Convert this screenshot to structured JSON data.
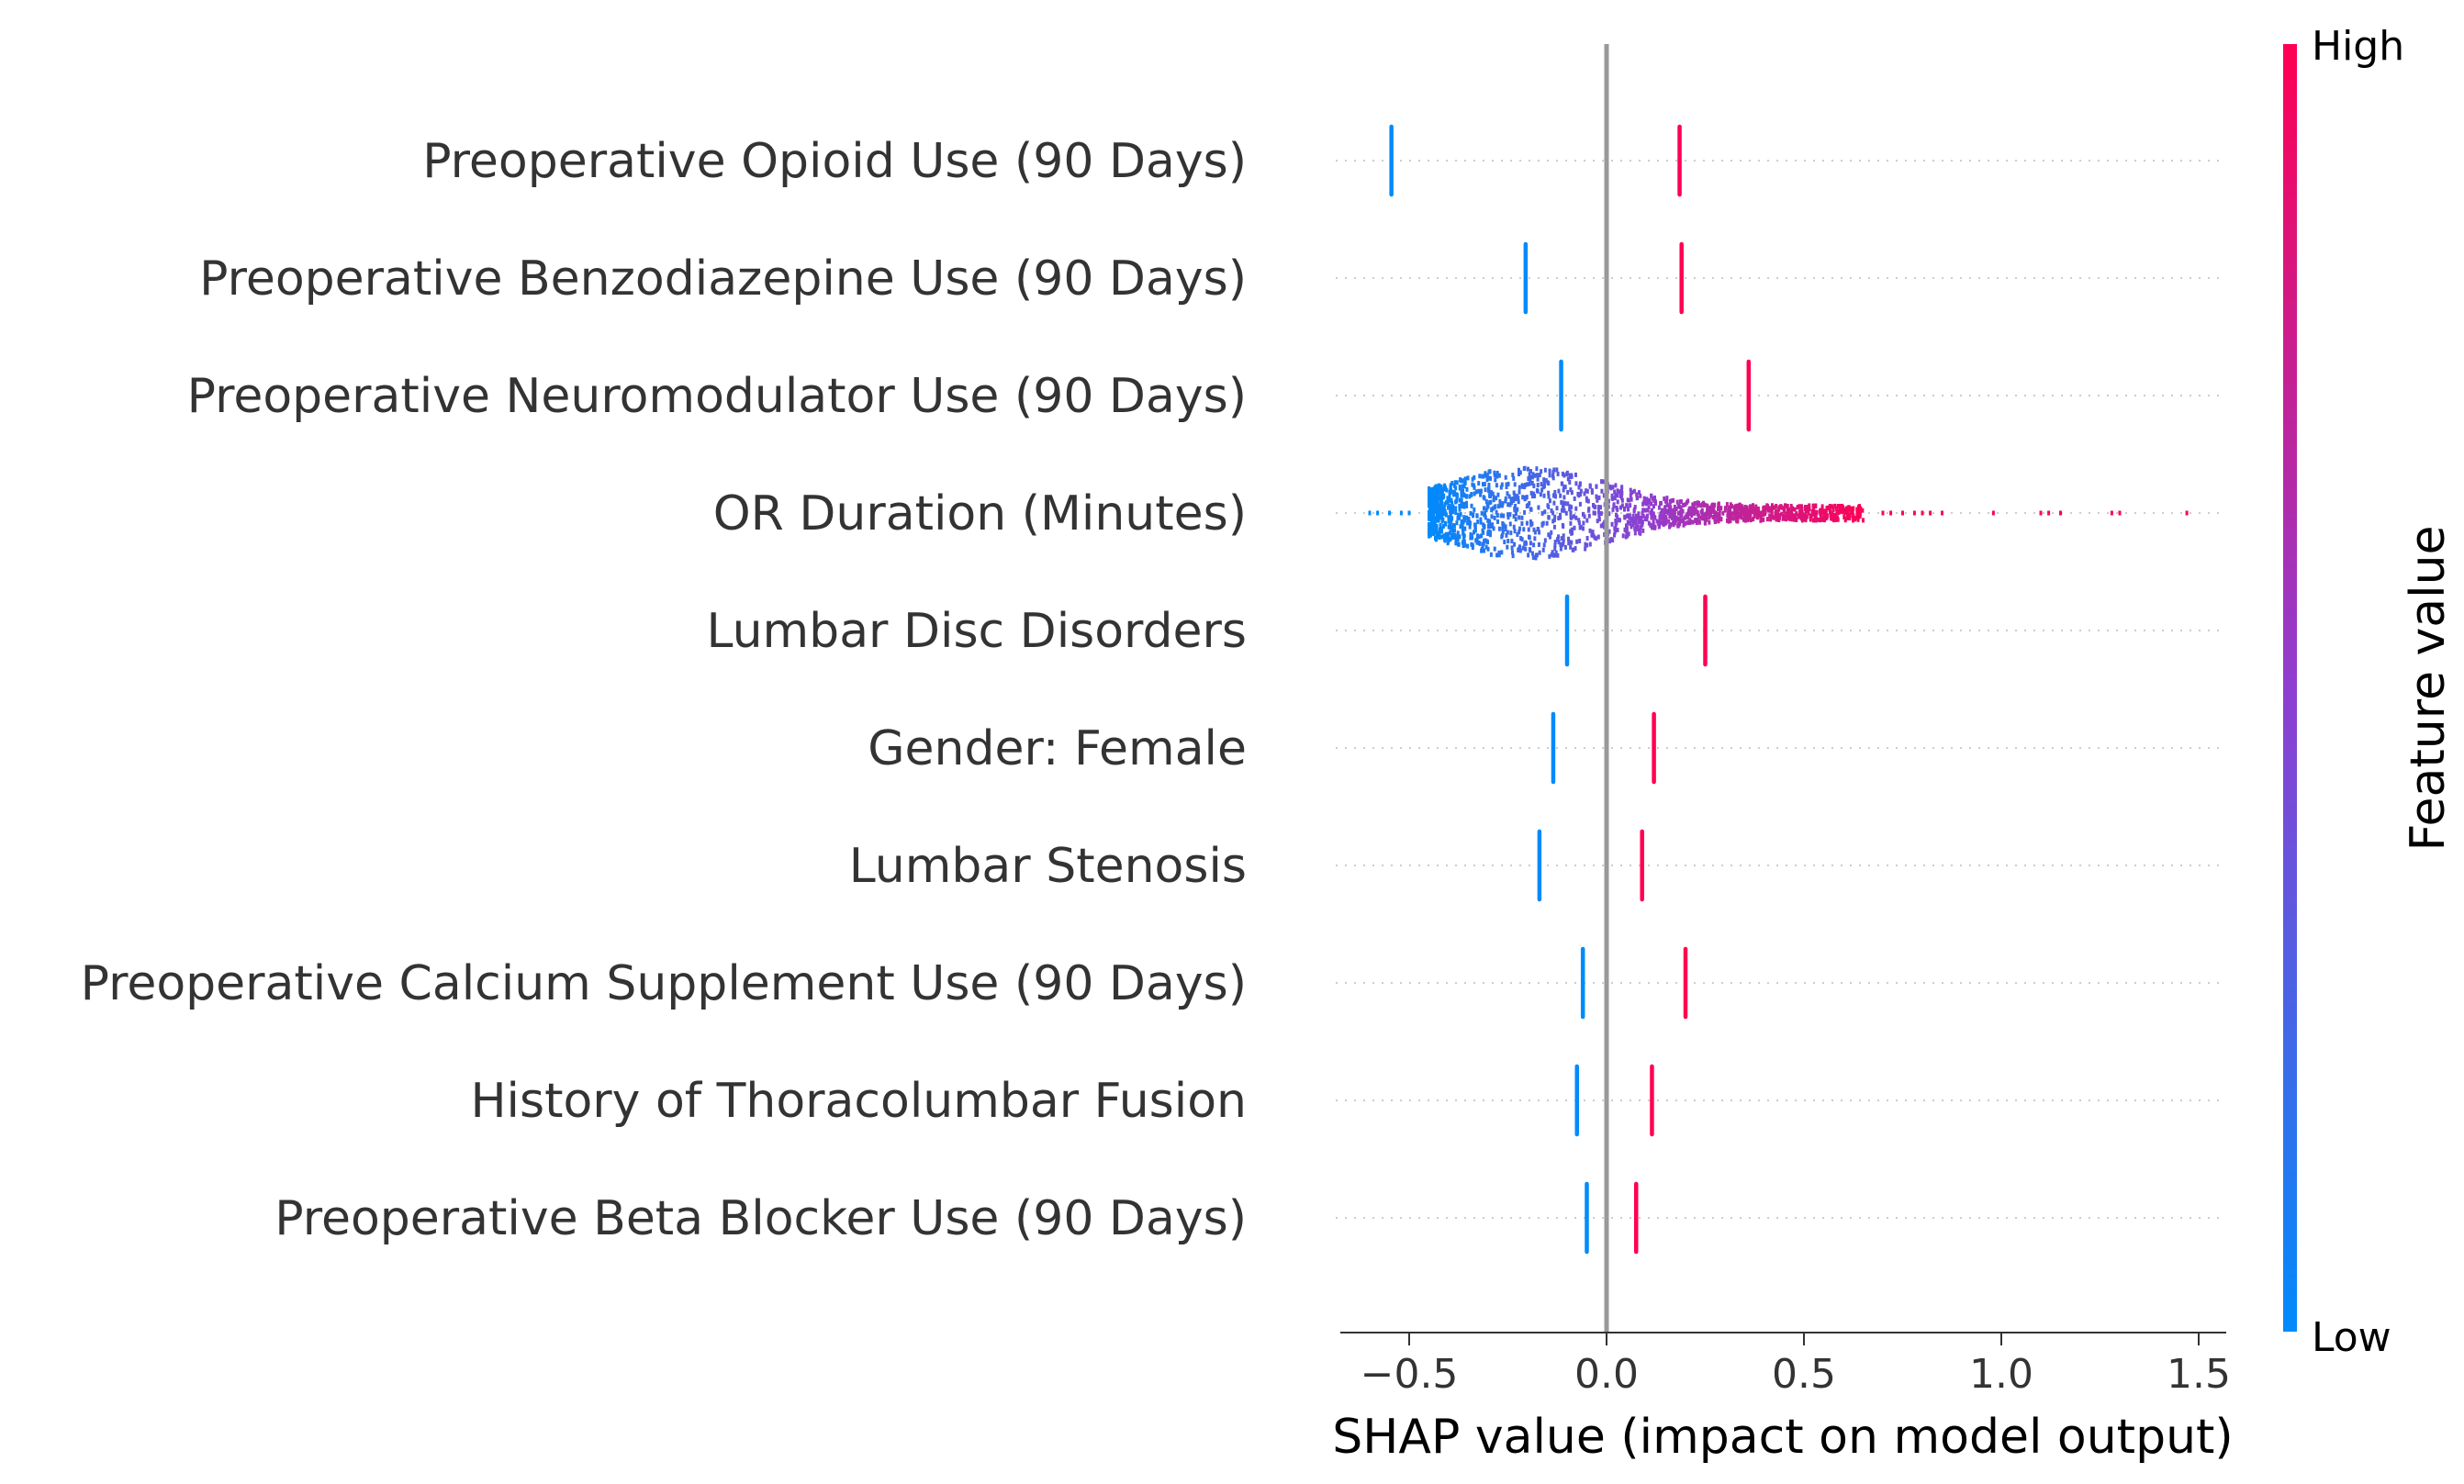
{
  "chart_data": {
    "type": "scatter",
    "subtype": "shap-summary-beeswarm",
    "xlabel": "SHAP value (impact on model output)",
    "xlim": [
      -0.68,
      1.57
    ],
    "xticks": [
      {
        "value": -0.5,
        "label": "−0.5"
      },
      {
        "value": 0.0,
        "label": "0.0"
      },
      {
        "value": 0.5,
        "label": "0.5"
      },
      {
        "value": 1.0,
        "label": "1.0"
      },
      {
        "value": 1.5,
        "label": "1.5"
      }
    ],
    "grid": false,
    "colorbar": {
      "title": "Feature value",
      "high_label": "High",
      "low_label": "Low",
      "low_color": "#008bfb",
      "mid_color": "#8f3ed0",
      "high_color": "#ff0052"
    },
    "features": [
      {
        "name": "Preoperative Opioid Use (90 Days)",
        "low": -0.545,
        "high": 0.185
      },
      {
        "name": "Preoperative Benzodiazepine Use (90 Days)",
        "low": -0.205,
        "high": 0.19
      },
      {
        "name": "Preoperative Neuromodulator Use (90 Days)",
        "low": -0.115,
        "high": 0.36
      },
      {
        "name": "OR Duration (Minutes)",
        "low": null,
        "high": null,
        "continuous": {
          "min": -0.6,
          "max": 1.47,
          "mode": -0.2,
          "bulk_range": [
            -0.45,
            0.65
          ]
        }
      },
      {
        "name": "Lumbar Disc Disorders",
        "low": -0.1,
        "high": 0.25
      },
      {
        "name": "Gender: Female",
        "low": -0.135,
        "high": 0.12
      },
      {
        "name": "Lumbar Stenosis",
        "low": -0.17,
        "high": 0.09
      },
      {
        "name": "Preoperative Calcium Supplement Use (90 Days)",
        "low": -0.06,
        "high": 0.2
      },
      {
        "name": "History of Thoracolumbar Fusion",
        "low": -0.075,
        "high": 0.115
      },
      {
        "name": "Preoperative Beta Blocker Use (90 Days)",
        "low": -0.05,
        "high": 0.075
      }
    ]
  }
}
